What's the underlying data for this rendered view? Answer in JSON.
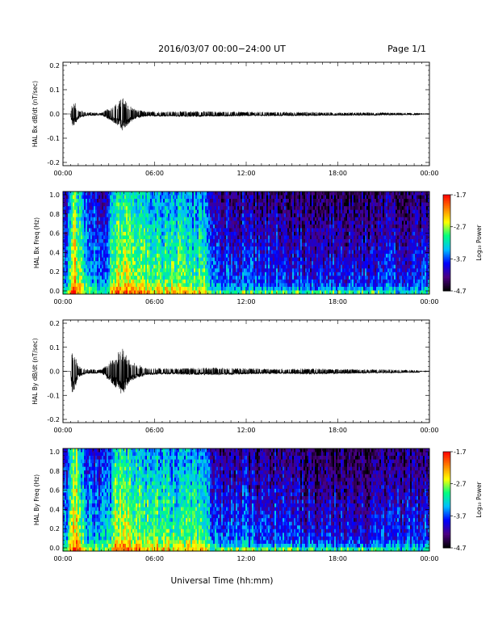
{
  "header": {
    "title": "2016/03/07   00:00−24:00 UT",
    "page": "Page 1/1"
  },
  "xlabel": "Universal Time (hh:mm)",
  "time_ticks": [
    "00:00",
    "06:00",
    "12:00",
    "18:00",
    "00:00"
  ],
  "colorbar": {
    "label": "Log₁₀ Power",
    "ticks": [
      "-1.7",
      "-2.7",
      "-3.7",
      "-4.7"
    ],
    "colors": [
      "#000000",
      "#4b0082",
      "#0000ff",
      "#00bfff",
      "#00ff7f",
      "#ffff00",
      "#ff7f00",
      "#ff0000"
    ]
  },
  "chart_data": [
    {
      "type": "line",
      "title": "",
      "ylabel": "HAL Bx dB/dt (nT/sec)",
      "xlim": [
        0,
        24
      ],
      "ylim": [
        -0.2,
        0.2
      ],
      "yticks": [
        "0.2",
        "0.1",
        "0.0",
        "-0.1",
        "-0.2"
      ],
      "grid": false,
      "series": [
        {
          "x": [
            0,
            0.5,
            0.6,
            0.8,
            1.0,
            1.5,
            2.5,
            3.2,
            3.6,
            3.9,
            4.3,
            4.8,
            5.5,
            7,
            8.5,
            10,
            12,
            14,
            16,
            18,
            20,
            22,
            23.3
          ],
          "y": [
            0.003,
            0.012,
            0.05,
            0.045,
            0.02,
            0.008,
            0.005,
            0.03,
            0.05,
            0.07,
            0.04,
            0.018,
            0.01,
            0.01,
            0.012,
            0.01,
            0.009,
            0.008,
            0.008,
            0.006,
            0.006,
            0.005,
            0.004
          ]
        }
      ]
    },
    {
      "type": "heatmap",
      "title": "",
      "ylabel": "HAL Bx Freq (Hz)",
      "xlim": [
        0,
        24
      ],
      "ylim": [
        0,
        1.0
      ],
      "yticks": [
        "1.0",
        "0.8",
        "0.6",
        "0.4",
        "0.2",
        "0.0"
      ],
      "zlim": [
        -4.7,
        -1.7
      ],
      "z_label": "Log₁₀ Power"
    },
    {
      "type": "line",
      "title": "",
      "ylabel": "HAL By dB/dt (nT/sec)",
      "xlim": [
        0,
        24
      ],
      "ylim": [
        -0.2,
        0.2
      ],
      "yticks": [
        "0.2",
        "0.1",
        "0.0",
        "-0.1",
        "-0.2"
      ],
      "grid": false,
      "series": [
        {
          "x": [
            0,
            0.5,
            0.6,
            0.8,
            1.0,
            1.5,
            2.5,
            3.2,
            3.6,
            3.9,
            4.3,
            4.8,
            5.5,
            7,
            8.5,
            10,
            12,
            14,
            16,
            18,
            20,
            22,
            23.3
          ],
          "y": [
            0.003,
            0.02,
            0.09,
            0.07,
            0.025,
            0.01,
            0.008,
            0.05,
            0.08,
            0.1,
            0.05,
            0.03,
            0.015,
            0.012,
            0.014,
            0.016,
            0.012,
            0.01,
            0.012,
            0.01,
            0.008,
            0.007,
            0.005
          ]
        }
      ]
    },
    {
      "type": "heatmap",
      "title": "",
      "ylabel": "HAL By Freq (Hz)",
      "xlim": [
        0,
        24
      ],
      "ylim": [
        0,
        1.0
      ],
      "yticks": [
        "1.0",
        "0.8",
        "0.6",
        "0.4",
        "0.2",
        "0.0"
      ],
      "zlim": [
        -4.7,
        -1.7
      ],
      "z_label": "Log₁₀ Power"
    }
  ]
}
